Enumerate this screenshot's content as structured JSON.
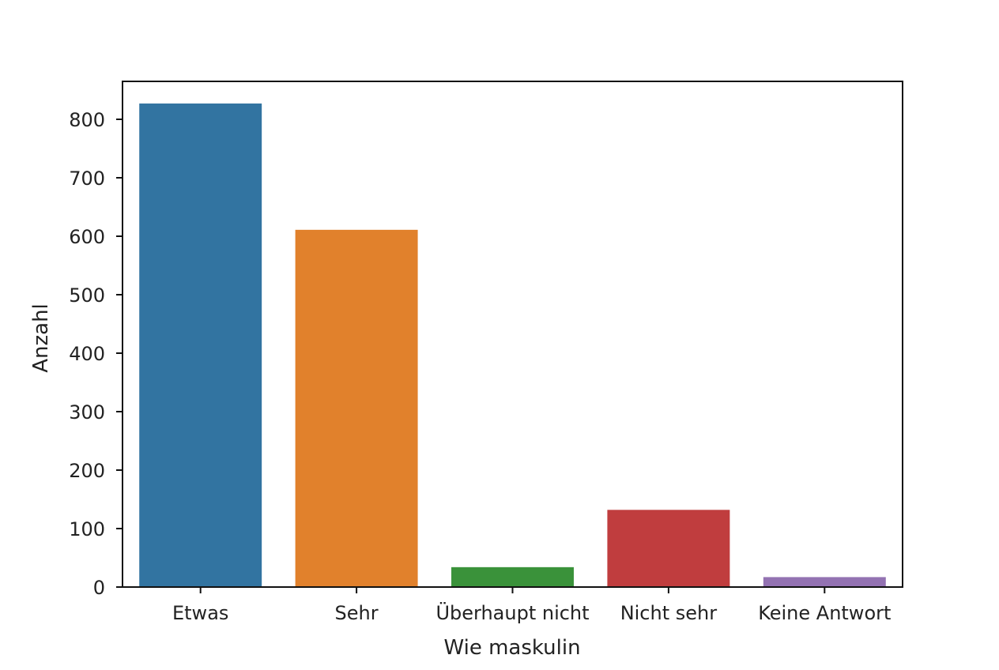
{
  "chart_data": {
    "type": "bar",
    "title": "",
    "xlabel": "Wie maskulin",
    "ylabel": "Anzahl",
    "categories": [
      "Etwas",
      "Sehr",
      "Überhaupt nicht",
      "Nicht sehr",
      "Keine Antwort"
    ],
    "values": [
      827,
      611,
      34,
      132,
      17
    ],
    "colors": [
      "#3274a1",
      "#e1812c",
      "#3a923a",
      "#c03d3e",
      "#9372b2"
    ],
    "ylim": [
      0,
      865
    ],
    "yticks": [
      0,
      100,
      200,
      300,
      400,
      500,
      600,
      700,
      800
    ],
    "grid": false,
    "legend": null
  }
}
